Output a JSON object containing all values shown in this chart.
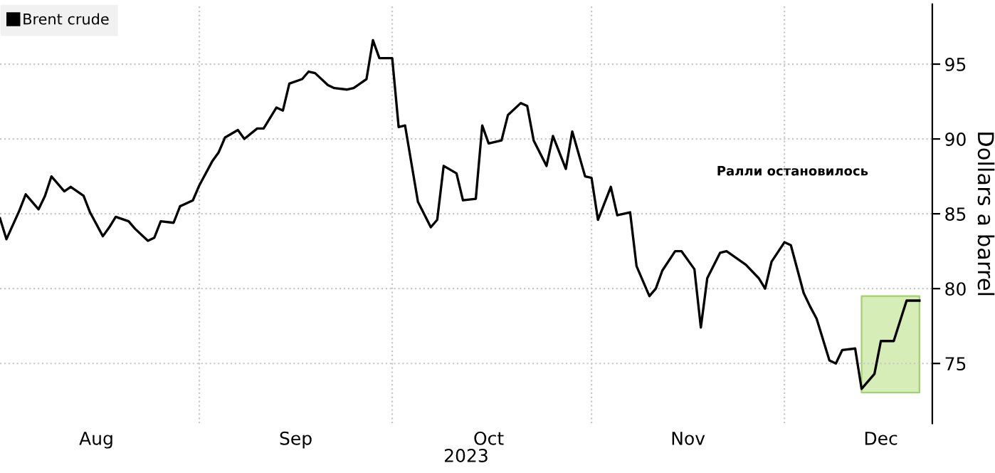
{
  "chart_data": {
    "type": "line",
    "xlabel": "2023",
    "ylabel": "Dollars a barrel",
    "annotations": [
      "Ралли остановилось"
    ],
    "legend": "top left",
    "grid": true,
    "marker": "none",
    "line_style": "solid",
    "xlim": [
      "2023-08-01",
      "2023-12-24"
    ],
    "xticks": [
      {
        "value": "2023-08-16",
        "label": "Aug"
      },
      {
        "value": "2023-09-01",
        "label": null
      },
      {
        "value": "2023-09-16",
        "label": "Sep"
      },
      {
        "value": "2023-10-01",
        "label": null
      },
      {
        "value": "2023-10-16",
        "label": "Oct"
      },
      {
        "value": "2023-11-01",
        "label": null
      },
      {
        "value": "2023-11-16",
        "label": "Nov"
      },
      {
        "value": "2023-12-01",
        "label": null
      },
      {
        "value": "2023-12-16",
        "label": "Dec"
      }
    ],
    "ylim": [
      71,
      99
    ],
    "yticks": [
      75,
      80,
      85,
      90,
      95
    ],
    "bands": [
      {
        "axis": "x",
        "from": "2023-12-13",
        "to": "2023-12-22",
        "color": "#d3ebb0"
      }
    ],
    "series": [
      {
        "name": "Brent crude",
        "color": "#000000",
        "x": [
          "2023-08-01",
          "2023-08-02",
          "2023-08-04",
          "2023-08-05",
          "2023-08-07",
          "2023-08-08",
          "2023-08-09",
          "2023-08-11",
          "2023-08-12",
          "2023-08-14",
          "2023-08-15",
          "2023-08-17",
          "2023-08-18",
          "2023-08-19",
          "2023-08-21",
          "2023-08-22",
          "2023-08-24",
          "2023-08-25",
          "2023-08-26",
          "2023-08-28",
          "2023-08-29",
          "2023-08-31",
          "2023-09-01",
          "2023-09-03",
          "2023-09-04",
          "2023-09-05",
          "2023-09-07",
          "2023-09-08",
          "2023-09-10",
          "2023-09-11",
          "2023-09-13",
          "2023-09-14",
          "2023-09-15",
          "2023-09-17",
          "2023-09-18",
          "2023-09-19",
          "2023-09-21",
          "2023-09-22",
          "2023-09-24",
          "2023-09-25",
          "2023-09-27",
          "2023-09-28",
          "2023-09-29",
          "2023-10-01",
          "2023-10-02",
          "2023-10-03",
          "2023-10-05",
          "2023-10-07",
          "2023-10-08",
          "2023-10-09",
          "2023-10-11",
          "2023-10-12",
          "2023-10-14",
          "2023-10-15",
          "2023-10-16",
          "2023-10-18",
          "2023-10-19",
          "2023-10-21",
          "2023-10-22",
          "2023-10-23",
          "2023-10-25",
          "2023-10-26",
          "2023-10-28",
          "2023-10-29",
          "2023-10-31",
          "2023-11-01",
          "2023-11-02",
          "2023-11-04",
          "2023-11-05",
          "2023-11-07",
          "2023-11-08",
          "2023-11-10",
          "2023-11-11",
          "2023-11-12",
          "2023-11-14",
          "2023-11-15",
          "2023-11-17",
          "2023-11-18",
          "2023-11-19",
          "2023-11-21",
          "2023-11-22",
          "2023-11-25",
          "2023-11-27",
          "2023-11-28",
          "2023-11-29",
          "2023-12-01",
          "2023-12-02",
          "2023-12-04",
          "2023-12-05",
          "2023-12-06",
          "2023-12-08",
          "2023-12-09",
          "2023-12-10",
          "2023-12-12",
          "2023-12-13",
          "2023-12-15",
          "2023-12-16",
          "2023-12-18",
          "2023-12-20",
          "2023-12-22"
        ],
        "values": [
          84.7,
          83.3,
          85.2,
          86.3,
          85.3,
          86.2,
          87.5,
          86.5,
          86.8,
          86.2,
          85.1,
          83.5,
          84.1,
          84.8,
          84.5,
          84.0,
          83.2,
          83.4,
          84.5,
          84.4,
          85.5,
          85.9,
          86.9,
          88.5,
          89.1,
          90.1,
          90.6,
          90.0,
          90.7,
          90.7,
          92.1,
          91.9,
          93.7,
          94.0,
          94.5,
          94.4,
          93.6,
          93.4,
          93.3,
          93.4,
          94.0,
          96.6,
          95.4,
          95.4,
          90.8,
          90.9,
          85.8,
          84.1,
          84.6,
          88.2,
          87.7,
          85.9,
          86.0,
          90.9,
          89.7,
          89.9,
          91.6,
          92.4,
          92.2,
          89.9,
          88.2,
          90.2,
          88.0,
          90.5,
          87.5,
          87.4,
          84.6,
          86.8,
          84.9,
          85.1,
          81.5,
          79.5,
          80.0,
          81.2,
          82.5,
          82.5,
          81.3,
          77.4,
          80.7,
          82.4,
          82.5,
          81.6,
          80.7,
          80.0,
          81.8,
          83.1,
          82.9,
          79.7,
          78.8,
          78.0,
          75.2,
          75.0,
          75.9,
          76.0,
          73.3,
          74.3,
          76.5,
          76.5,
          79.2,
          79.2
        ]
      }
    ]
  }
}
